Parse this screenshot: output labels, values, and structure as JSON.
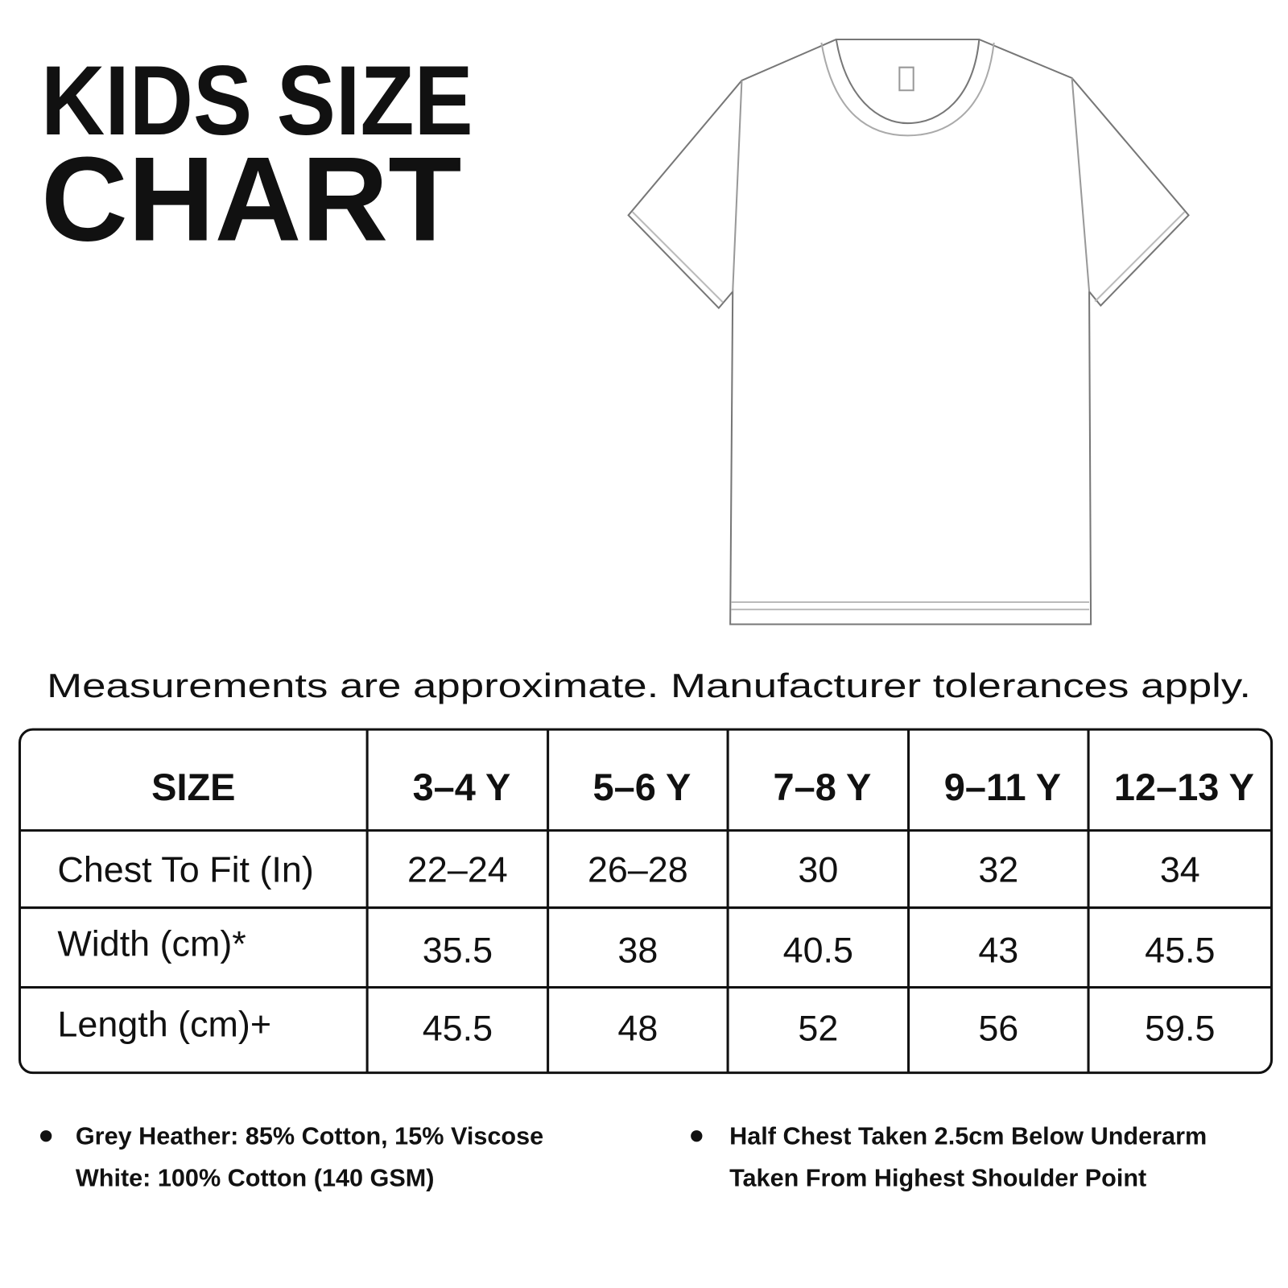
{
  "title": {
    "line1": "KIDS SIZE",
    "line2": "CHART"
  },
  "note": "Measurements are approximate. Manufacturer tolerances apply.",
  "table": {
    "header": [
      "SIZE",
      "3–4 Y",
      "5–6 Y",
      "7–8 Y",
      "9–11 Y",
      "12–13 Y"
    ],
    "rows": [
      [
        "Chest To Fit (In)",
        "22–24",
        "26–28",
        "30",
        "32",
        "34"
      ],
      [
        "Width (cm)*",
        "35.5",
        "38",
        "40.5",
        "43",
        "45.5"
      ],
      [
        "Length (cm)+",
        "45.5",
        "48",
        "52",
        "56",
        "59.5"
      ]
    ]
  },
  "bullets": [
    {
      "lines": [
        "Grey Heather: 85% Cotton, 15% Viscose",
        "White: 100% Cotton (140 GSM)"
      ]
    },
    {
      "lines": [
        "Half Chest Taken 2.5cm Below Underarm",
        "Taken From Highest Shoulder Point"
      ]
    }
  ]
}
